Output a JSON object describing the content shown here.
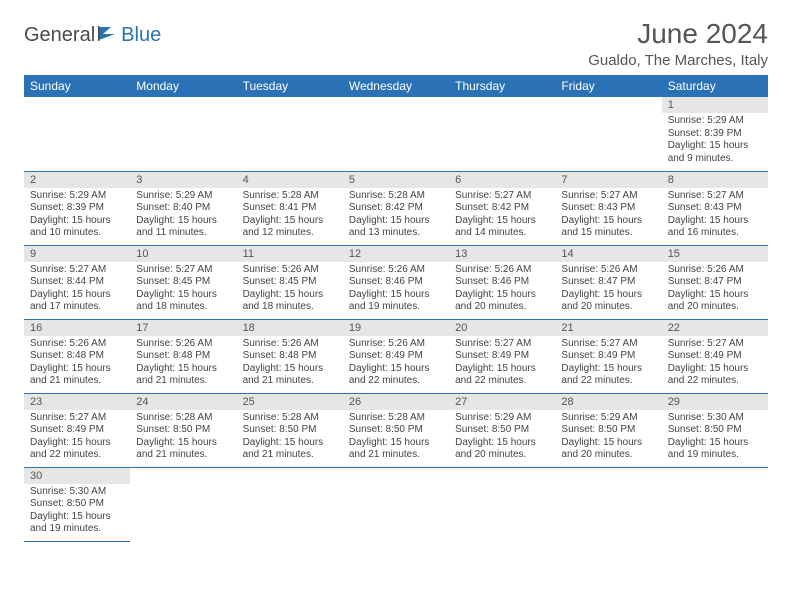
{
  "brand": {
    "part1": "General",
    "part2": "Blue"
  },
  "title": {
    "month": "June 2024",
    "location": "Gualdo, The Marches, Italy"
  },
  "colors": {
    "header_bg": "#2a72b5",
    "header_fg": "#ffffff",
    "daynum_bg": "#e6e6e6",
    "border": "#2a72b5"
  },
  "daysOfWeek": [
    "Sunday",
    "Monday",
    "Tuesday",
    "Wednesday",
    "Thursday",
    "Friday",
    "Saturday"
  ],
  "startWeekday": 6,
  "daysInMonth": 30,
  "cells": {
    "1": {
      "sunrise": "5:29 AM",
      "sunset": "8:39 PM",
      "daylight": "15 hours and 9 minutes."
    },
    "2": {
      "sunrise": "5:29 AM",
      "sunset": "8:39 PM",
      "daylight": "15 hours and 10 minutes."
    },
    "3": {
      "sunrise": "5:29 AM",
      "sunset": "8:40 PM",
      "daylight": "15 hours and 11 minutes."
    },
    "4": {
      "sunrise": "5:28 AM",
      "sunset": "8:41 PM",
      "daylight": "15 hours and 12 minutes."
    },
    "5": {
      "sunrise": "5:28 AM",
      "sunset": "8:42 PM",
      "daylight": "15 hours and 13 minutes."
    },
    "6": {
      "sunrise": "5:27 AM",
      "sunset": "8:42 PM",
      "daylight": "15 hours and 14 minutes."
    },
    "7": {
      "sunrise": "5:27 AM",
      "sunset": "8:43 PM",
      "daylight": "15 hours and 15 minutes."
    },
    "8": {
      "sunrise": "5:27 AM",
      "sunset": "8:43 PM",
      "daylight": "15 hours and 16 minutes."
    },
    "9": {
      "sunrise": "5:27 AM",
      "sunset": "8:44 PM",
      "daylight": "15 hours and 17 minutes."
    },
    "10": {
      "sunrise": "5:27 AM",
      "sunset": "8:45 PM",
      "daylight": "15 hours and 18 minutes."
    },
    "11": {
      "sunrise": "5:26 AM",
      "sunset": "8:45 PM",
      "daylight": "15 hours and 18 minutes."
    },
    "12": {
      "sunrise": "5:26 AM",
      "sunset": "8:46 PM",
      "daylight": "15 hours and 19 minutes."
    },
    "13": {
      "sunrise": "5:26 AM",
      "sunset": "8:46 PM",
      "daylight": "15 hours and 20 minutes."
    },
    "14": {
      "sunrise": "5:26 AM",
      "sunset": "8:47 PM",
      "daylight": "15 hours and 20 minutes."
    },
    "15": {
      "sunrise": "5:26 AM",
      "sunset": "8:47 PM",
      "daylight": "15 hours and 20 minutes."
    },
    "16": {
      "sunrise": "5:26 AM",
      "sunset": "8:48 PM",
      "daylight": "15 hours and 21 minutes."
    },
    "17": {
      "sunrise": "5:26 AM",
      "sunset": "8:48 PM",
      "daylight": "15 hours and 21 minutes."
    },
    "18": {
      "sunrise": "5:26 AM",
      "sunset": "8:48 PM",
      "daylight": "15 hours and 21 minutes."
    },
    "19": {
      "sunrise": "5:26 AM",
      "sunset": "8:49 PM",
      "daylight": "15 hours and 22 minutes."
    },
    "20": {
      "sunrise": "5:27 AM",
      "sunset": "8:49 PM",
      "daylight": "15 hours and 22 minutes."
    },
    "21": {
      "sunrise": "5:27 AM",
      "sunset": "8:49 PM",
      "daylight": "15 hours and 22 minutes."
    },
    "22": {
      "sunrise": "5:27 AM",
      "sunset": "8:49 PM",
      "daylight": "15 hours and 22 minutes."
    },
    "23": {
      "sunrise": "5:27 AM",
      "sunset": "8:49 PM",
      "daylight": "15 hours and 22 minutes."
    },
    "24": {
      "sunrise": "5:28 AM",
      "sunset": "8:50 PM",
      "daylight": "15 hours and 21 minutes."
    },
    "25": {
      "sunrise": "5:28 AM",
      "sunset": "8:50 PM",
      "daylight": "15 hours and 21 minutes."
    },
    "26": {
      "sunrise": "5:28 AM",
      "sunset": "8:50 PM",
      "daylight": "15 hours and 21 minutes."
    },
    "27": {
      "sunrise": "5:29 AM",
      "sunset": "8:50 PM",
      "daylight": "15 hours and 20 minutes."
    },
    "28": {
      "sunrise": "5:29 AM",
      "sunset": "8:50 PM",
      "daylight": "15 hours and 20 minutes."
    },
    "29": {
      "sunrise": "5:30 AM",
      "sunset": "8:50 PM",
      "daylight": "15 hours and 19 minutes."
    },
    "30": {
      "sunrise": "5:30 AM",
      "sunset": "8:50 PM",
      "daylight": "15 hours and 19 minutes."
    }
  },
  "labels": {
    "sunrise": "Sunrise:",
    "sunset": "Sunset:",
    "daylight": "Daylight:"
  }
}
